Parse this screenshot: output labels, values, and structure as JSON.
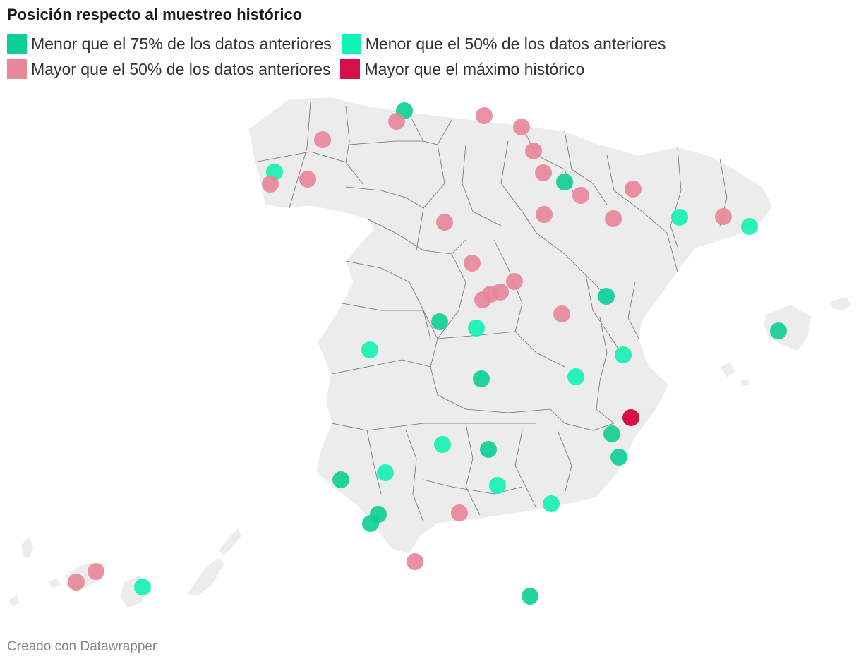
{
  "title": "Posición respecto al muestreo histórico",
  "legend": [
    {
      "label": "Menor que el 75% de los datos anteriores",
      "color": "#0ccf95"
    },
    {
      "label": "Menor que el 50% de los datos anteriores",
      "color": "#12f2b4"
    },
    {
      "label": "Mayor que el 50% de los datos anteriores",
      "color": "#e8869a"
    },
    {
      "label": "Mayor que el máximo histórico",
      "color": "#d50f47"
    }
  ],
  "credit": "Creado con Datawrapper",
  "map": {
    "region": "España",
    "land_color": "#ececec",
    "border_color": "#6d6d6d"
  },
  "points": [
    {
      "cat": 0
    },
    {
      "cat": 2
    },
    {
      "cat": 2
    },
    {
      "cat": 2
    },
    {
      "cat": 2
    },
    {
      "cat": 1
    },
    {
      "cat": 2
    },
    {
      "cat": 2
    },
    {
      "cat": 2
    },
    {
      "cat": 2
    },
    {
      "cat": 0
    },
    {
      "cat": 2
    },
    {
      "cat": 2
    },
    {
      "cat": 2
    },
    {
      "cat": 1
    },
    {
      "cat": 2
    },
    {
      "cat": 1
    },
    {
      "cat": 2
    },
    {
      "cat": 2
    },
    {
      "cat": 2
    },
    {
      "cat": 2
    },
    {
      "cat": 2
    },
    {
      "cat": 2
    },
    {
      "cat": 0
    },
    {
      "cat": 2
    },
    {
      "cat": 1
    },
    {
      "cat": 0
    },
    {
      "cat": 0
    },
    {
      "cat": 1
    },
    {
      "cat": 2
    },
    {
      "cat": 1
    },
    {
      "cat": 0
    },
    {
      "cat": 1
    },
    {
      "cat": 3
    },
    {
      "cat": 0
    },
    {
      "cat": 0
    },
    {
      "cat": 1
    },
    {
      "cat": 0
    },
    {
      "cat": 1
    },
    {
      "cat": 0
    },
    {
      "cat": 0
    },
    {
      "cat": 0
    },
    {
      "cat": 1
    },
    {
      "cat": 2
    },
    {
      "cat": 1
    },
    {
      "cat": 2
    },
    {
      "cat": 0
    },
    {
      "cat": 2
    },
    {
      "cat": 2
    },
    {
      "cat": 1
    }
  ]
}
